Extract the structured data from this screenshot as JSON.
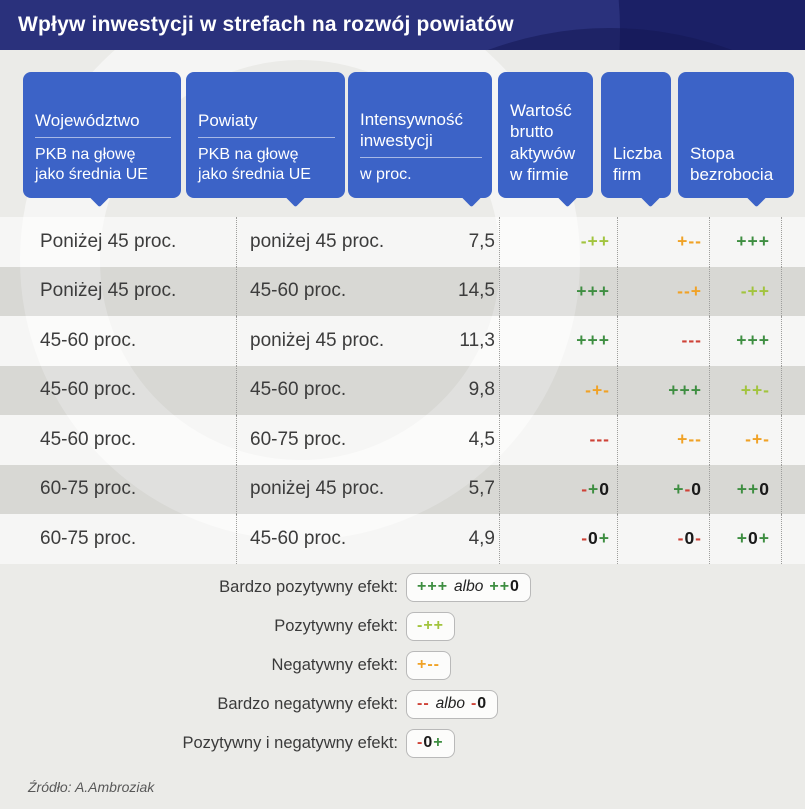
{
  "colors": {
    "strong_positive": "#3e8e41",
    "positive": "#a2c43e",
    "negative": "#f0a226",
    "strong_negative": "#ce4237",
    "neutral": "#1a1a1a",
    "header_blue": "#3c63c7",
    "title_navy": "#1b2066",
    "page_bg": "#ebebe8",
    "text_dark": "#3c3c3c"
  },
  "chart_data": {
    "type": "table",
    "title": "Wpływ inwestycji w strefach na rozwój powiatów",
    "columns": [
      {
        "title": "Województwo",
        "subtitle": "PKB na głowę\njako średnia UE"
      },
      {
        "title": "Powiaty",
        "subtitle": "PKB na głowę\njako średnia UE"
      },
      {
        "title": "Intensywność\ninwestycji",
        "subtitle": "w proc."
      },
      {
        "title": "Wartość\nbrutto\naktywów\nw firmie"
      },
      {
        "title": "Liczba\nfirm"
      },
      {
        "title": "Stopa\nbezrobocia"
      }
    ],
    "rows": [
      {
        "woj": "Poniżej 45 proc.",
        "pow": "poniżej 45 proc.",
        "val": "7,5",
        "wart": [
          {
            "t": "-",
            "c": "positive"
          },
          {
            "t": "+",
            "c": "positive"
          },
          {
            "t": "+",
            "c": "positive"
          }
        ],
        "licz": [
          {
            "t": "+",
            "c": "negative"
          },
          {
            "t": "-",
            "c": "negative"
          },
          {
            "t": "-",
            "c": "negative"
          }
        ],
        "stop": [
          {
            "t": "+",
            "c": "strong_positive"
          },
          {
            "t": "+",
            "c": "strong_positive"
          },
          {
            "t": "+",
            "c": "strong_positive"
          }
        ]
      },
      {
        "woj": "Poniżej 45 proc.",
        "pow": "45-60 proc.",
        "val": "14,5",
        "wart": [
          {
            "t": "+",
            "c": "strong_positive"
          },
          {
            "t": "+",
            "c": "strong_positive"
          },
          {
            "t": "+",
            "c": "strong_positive"
          }
        ],
        "licz": [
          {
            "t": "-",
            "c": "negative"
          },
          {
            "t": "-",
            "c": "negative"
          },
          {
            "t": "+",
            "c": "negative"
          }
        ],
        "stop": [
          {
            "t": "-",
            "c": "positive"
          },
          {
            "t": "+",
            "c": "positive"
          },
          {
            "t": "+",
            "c": "positive"
          }
        ]
      },
      {
        "woj": "45-60 proc.",
        "pow": "poniżej 45 proc.",
        "val": "11,3",
        "wart": [
          {
            "t": "+",
            "c": "strong_positive"
          },
          {
            "t": "+",
            "c": "strong_positive"
          },
          {
            "t": "+",
            "c": "strong_positive"
          }
        ],
        "licz": [
          {
            "t": "-",
            "c": "strong_negative"
          },
          {
            "t": "-",
            "c": "strong_negative"
          },
          {
            "t": "-",
            "c": "strong_negative"
          }
        ],
        "stop": [
          {
            "t": "+",
            "c": "strong_positive"
          },
          {
            "t": "+",
            "c": "strong_positive"
          },
          {
            "t": "+",
            "c": "strong_positive"
          }
        ]
      },
      {
        "woj": "45-60 proc.",
        "pow": "45-60 proc.",
        "val": "9,8",
        "wart": [
          {
            "t": "-",
            "c": "negative"
          },
          {
            "t": "+",
            "c": "negative"
          },
          {
            "t": "-",
            "c": "negative"
          }
        ],
        "licz": [
          {
            "t": "+",
            "c": "strong_positive"
          },
          {
            "t": "+",
            "c": "strong_positive"
          },
          {
            "t": "+",
            "c": "strong_positive"
          }
        ],
        "stop": [
          {
            "t": "+",
            "c": "positive"
          },
          {
            "t": "+",
            "c": "positive"
          },
          {
            "t": "-",
            "c": "positive"
          }
        ]
      },
      {
        "woj": "45-60 proc.",
        "pow": "60-75 proc.",
        "val": "4,5",
        "wart": [
          {
            "t": "-",
            "c": "strong_negative"
          },
          {
            "t": "-",
            "c": "strong_negative"
          },
          {
            "t": "-",
            "c": "strong_negative"
          }
        ],
        "licz": [
          {
            "t": "+",
            "c": "negative"
          },
          {
            "t": "-",
            "c": "negative"
          },
          {
            "t": "-",
            "c": "negative"
          }
        ],
        "stop": [
          {
            "t": "-",
            "c": "negative"
          },
          {
            "t": "+",
            "c": "negative"
          },
          {
            "t": "-",
            "c": "negative"
          }
        ]
      },
      {
        "woj": "60-75 proc.",
        "pow": "poniżej 45 proc.",
        "val": "5,7",
        "wart": [
          {
            "t": "-",
            "c": "strong_negative"
          },
          {
            "t": "+",
            "c": "strong_positive"
          },
          {
            "t": "0",
            "c": "neutral"
          }
        ],
        "licz": [
          {
            "t": "+",
            "c": "strong_positive"
          },
          {
            "t": "-",
            "c": "strong_negative"
          },
          {
            "t": "0",
            "c": "neutral"
          }
        ],
        "stop": [
          {
            "t": "+",
            "c": "strong_positive"
          },
          {
            "t": "+",
            "c": "strong_positive"
          },
          {
            "t": "0",
            "c": "neutral"
          }
        ]
      },
      {
        "woj": "60-75 proc.",
        "pow": "45-60 proc.",
        "val": "4,9",
        "wart": [
          {
            "t": "-",
            "c": "strong_negative"
          },
          {
            "t": "0",
            "c": "neutral"
          },
          {
            "t": "+",
            "c": "strong_positive"
          }
        ],
        "licz": [
          {
            "t": "-",
            "c": "strong_negative"
          },
          {
            "t": "0",
            "c": "neutral"
          },
          {
            "t": "-",
            "c": "strong_negative"
          }
        ],
        "stop": [
          {
            "t": "+",
            "c": "strong_positive"
          },
          {
            "t": "0",
            "c": "neutral"
          },
          {
            "t": "+",
            "c": "strong_positive"
          }
        ]
      }
    ],
    "legend": {
      "items": [
        {
          "label": "Bardzo pozytywny efekt:",
          "sym1": [
            {
              "t": "+",
              "c": "strong_positive"
            },
            {
              "t": "+",
              "c": "strong_positive"
            },
            {
              "t": "+",
              "c": "strong_positive"
            }
          ],
          "conj": "albo",
          "sym2": [
            {
              "t": "+",
              "c": "strong_positive"
            },
            {
              "t": "+",
              "c": "strong_positive"
            },
            {
              "t": "0",
              "c": "neutral"
            }
          ]
        },
        {
          "label": "Pozytywny efekt:",
          "sym1": [
            {
              "t": "-",
              "c": "positive"
            },
            {
              "t": "+",
              "c": "positive"
            },
            {
              "t": "+",
              "c": "positive"
            }
          ]
        },
        {
          "label": "Negatywny efekt:",
          "sym1": [
            {
              "t": "+",
              "c": "negative"
            },
            {
              "t": "-",
              "c": "negative"
            },
            {
              "t": "-",
              "c": "negative"
            }
          ]
        },
        {
          "label": "Bardzo negatywny efekt:",
          "sym1": [
            {
              "t": "-",
              "c": "strong_negative"
            },
            {
              "t": "-",
              "c": "strong_negative"
            }
          ],
          "conj": "albo",
          "sym2": [
            {
              "t": "-",
              "c": "strong_negative"
            },
            {
              "t": "0",
              "c": "neutral"
            }
          ]
        },
        {
          "label": "Pozytywny i negatywny efekt:",
          "sym1": [
            {
              "t": "-",
              "c": "strong_negative"
            },
            {
              "t": "0",
              "c": "neutral"
            },
            {
              "t": "+",
              "c": "strong_positive"
            }
          ]
        }
      ]
    },
    "source": "Źródło: A.Ambroziak"
  }
}
